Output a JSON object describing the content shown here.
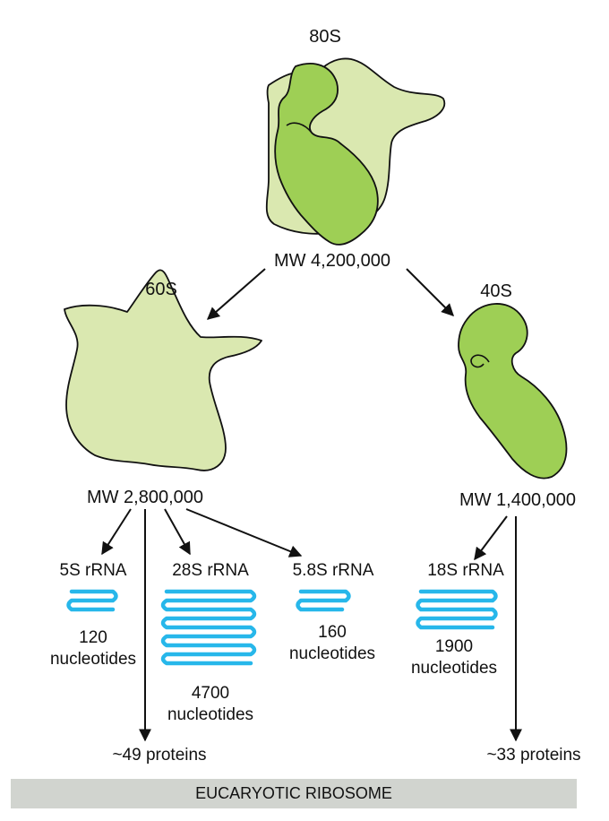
{
  "title": "EUCARYOTIC RIBOSOME",
  "colors": {
    "large_subunit_fill": "#dae8b0",
    "small_subunit_fill": "#9ecf55",
    "rna_strand": "#27b7ea",
    "footer_bar": "#d1d4cf",
    "arrow": "#111111"
  },
  "ribosome": {
    "label": "80S",
    "mw": "MW 4,200,000"
  },
  "large_subunit": {
    "label": "60S",
    "mw": "MW 2,800,000",
    "proteins": "~49 proteins"
  },
  "small_subunit": {
    "label": "40S",
    "mw": "MW 1,400,000",
    "proteins": "~33 proteins"
  },
  "rrnas": [
    {
      "name": "5S rRNA",
      "count": "120",
      "unit": "nucleotides"
    },
    {
      "name": "28S rRNA",
      "count": "4700",
      "unit": "nucleotides"
    },
    {
      "name": "5.8S rRNA",
      "count": "160",
      "unit": "nucleotides"
    },
    {
      "name": "18S rRNA",
      "count": "1900",
      "unit": "nucleotides"
    }
  ]
}
